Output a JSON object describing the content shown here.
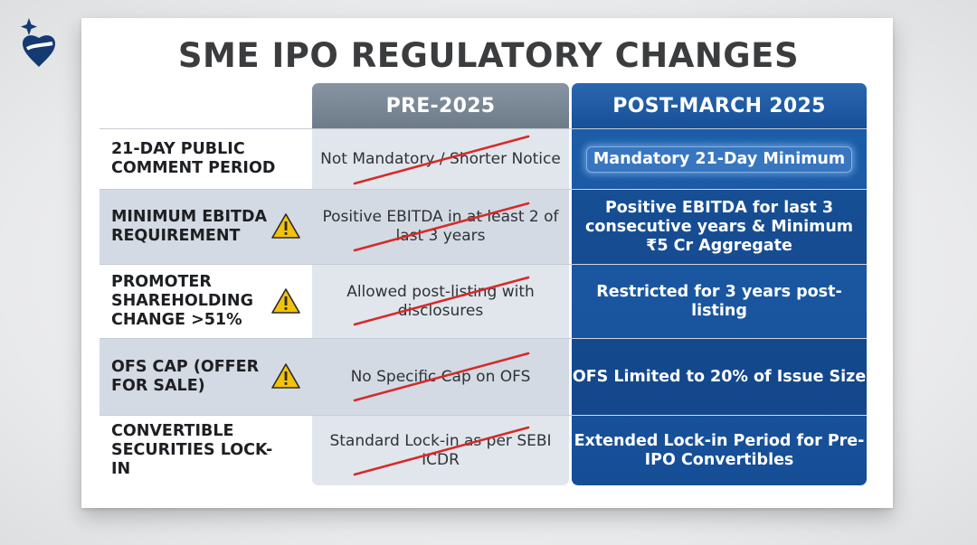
{
  "title": "SME IPO REGULATORY CHANGES",
  "columns": {
    "pre": "PRE-2025",
    "post": "POST-MARCH 2025"
  },
  "colors": {
    "title": "#3b3c3e",
    "pre_header": "#7a8795",
    "post_header": "#1d5da8",
    "strike": "#d62a2a",
    "warning": "#f4c20d"
  },
  "icons": {
    "logo": "sparkle-heart-logo",
    "warning": "warning-triangle-icon"
  },
  "rows": [
    {
      "label": "21-DAY PUBLIC COMMENT PERIOD",
      "warning": false,
      "pre": "Not Mandatory / Shorter Notice",
      "post": "Mandatory 21-Day Minimum"
    },
    {
      "label": "MINIMUM EBITDA REQUIREMENT",
      "warning": true,
      "pre": "Positive EBITDA in at least 2 of last 3 years",
      "post": "Positive EBITDA for last 3 consecutive years & Minimum ₹5 Cr Aggregate"
    },
    {
      "label": "PROMOTER SHAREHOLDING CHANGE >51%",
      "warning": true,
      "pre": "Allowed post-listing with disclosures",
      "post": "Restricted for 3 years post-listing"
    },
    {
      "label": "OFS CAP (OFFER FOR SALE)",
      "warning": true,
      "pre": "No Specific Cap on OFS",
      "post": "OFS Limited to 20% of Issue Size"
    },
    {
      "label": "CONVERTIBLE SECURITIES LOCK-IN",
      "warning": false,
      "pre": "Standard Lock-in as per SEBI ICDR",
      "post": "Extended Lock-in Period for Pre-IPO Convertibles"
    }
  ]
}
